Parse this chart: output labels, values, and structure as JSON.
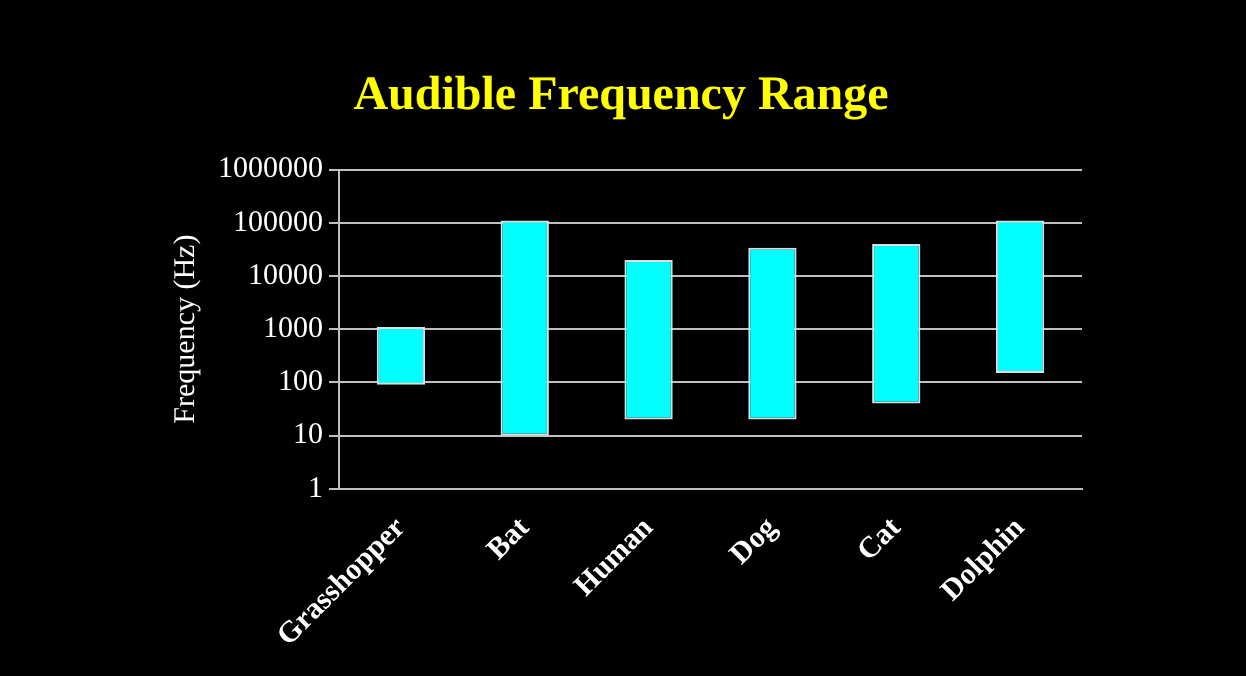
{
  "chart_data": {
    "type": "bar",
    "title": "Audible Frequency Range",
    "ylabel": "Frequency (Hz)",
    "categories": [
      "Grasshopper",
      "Bat",
      "Human",
      "Dog",
      "Cat",
      "Dolphin"
    ],
    "base": [
      90,
      10,
      20,
      20,
      40,
      150
    ],
    "values": [
      1010,
      109990,
      19980,
      33980,
      39960,
      109850
    ],
    "color": "#00ffff",
    "log": "y",
    "ylim": [
      1,
      1000000
    ],
    "yticks": [
      1,
      10,
      100,
      1000,
      10000,
      100000,
      1000000
    ],
    "grid": "y",
    "legend": false
  }
}
